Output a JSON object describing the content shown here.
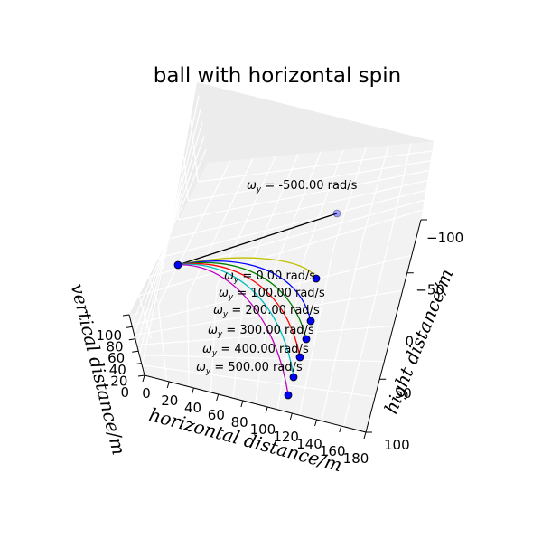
{
  "chart_data": {
    "type": "line3d",
    "title": "ball with horizontal spin",
    "xlabel": "horizontal distance/m",
    "ylabel": "hight distance/m",
    "zlabel": "vertical distance/m",
    "x_ticks": [
      "0",
      "20",
      "40",
      "60",
      "80",
      "100",
      "120",
      "140",
      "160",
      "180"
    ],
    "y_ticks": [
      "−100",
      "−50",
      "0",
      "50",
      "100"
    ],
    "z_ticks": [
      "100",
      "80",
      "60",
      "40",
      "20",
      "0"
    ],
    "colors": {
      "pane": "#f2f2f2",
      "pane_side": "#ececec",
      "grid": "#ffffff",
      "marker": "#0000ff"
    },
    "start_marker": "blue-circle",
    "series": [
      {
        "label_prefix": "ω",
        "label_sub": "y",
        "label_value": " = -500.00 rad/s",
        "color": "#000000"
      },
      {
        "label_prefix": "ω",
        "label_sub": "y",
        "label_value": " = 0.00 rad/s",
        "color": "#bfbf00"
      },
      {
        "label_prefix": "ω",
        "label_sub": "y",
        "label_value": " = 100.00 rad/s",
        "color": "#0000ff"
      },
      {
        "label_prefix": "ω",
        "label_sub": "y",
        "label_value": " = 200.00 rad/s",
        "color": "#008000"
      },
      {
        "label_prefix": "ω",
        "label_sub": "y",
        "label_value": " = 300.00 rad/s",
        "color": "#ff0000"
      },
      {
        "label_prefix": "ω",
        "label_sub": "y",
        "label_value": " = 400.00 rad/s",
        "color": "#00bfbf"
      },
      {
        "label_prefix": "ω",
        "label_sub": "y",
        "label_value": " = 500.00 rad/s",
        "color": "#bf00bf"
      }
    ]
  }
}
